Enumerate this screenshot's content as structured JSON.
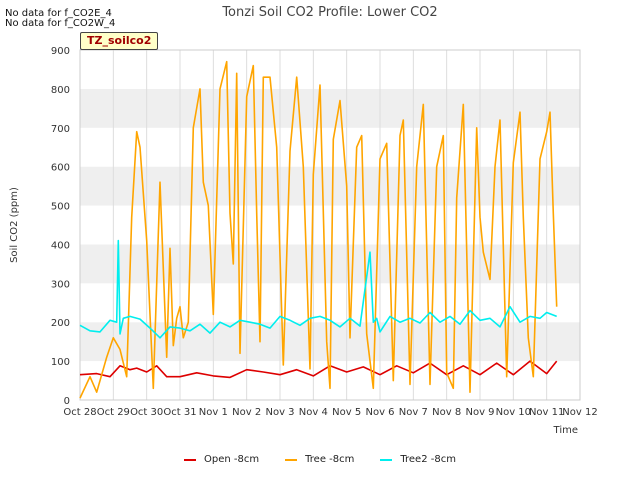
{
  "no_data_messages": [
    "No data for f_CO2E_4",
    "No data for f_CO2W_4"
  ],
  "badge_label": "TZ_soilco2",
  "chart_data": {
    "type": "line",
    "title": "Tonzi Soil CO2 Profile: Lower CO2",
    "xlabel": "Time",
    "ylabel": "Soil CO2 (ppm)",
    "xlim": [
      0,
      15
    ],
    "ylim": [
      0,
      900
    ],
    "yticks": [
      0,
      100,
      200,
      300,
      400,
      500,
      600,
      700,
      800,
      900
    ],
    "xtick_labels": [
      "Oct 28",
      "Oct 29",
      "Oct 30",
      "Oct 31",
      "Nov 1",
      "Nov 2",
      "Nov 3",
      "Nov 4",
      "Nov 5",
      "Nov 6",
      "Nov 7",
      "Nov 8",
      "Nov 9",
      "Nov 10",
      "Nov 11",
      "Nov 12"
    ],
    "legend_position": "bottom-center",
    "series": [
      {
        "name": "Open -8cm",
        "color": "#dd0000",
        "x": [
          0.0,
          0.5,
          0.9,
          1.2,
          1.5,
          1.7,
          2.0,
          2.3,
          2.6,
          3.0,
          3.5,
          4.0,
          4.5,
          5.0,
          5.5,
          6.0,
          6.5,
          7.0,
          7.5,
          8.0,
          8.5,
          9.0,
          9.5,
          10.0,
          10.5,
          11.0,
          11.5,
          12.0,
          12.5,
          13.0,
          13.5,
          14.0,
          14.3
        ],
        "values": [
          65,
          68,
          60,
          88,
          78,
          82,
          72,
          88,
          60,
          60,
          70,
          62,
          58,
          78,
          72,
          65,
          78,
          62,
          88,
          72,
          85,
          65,
          88,
          70,
          95,
          65,
          88,
          65,
          95,
          65,
          100,
          68,
          100
        ]
      },
      {
        "name": "Tree -8cm",
        "color": "#ffa500",
        "x": [
          0.0,
          0.3,
          0.5,
          0.8,
          1.0,
          1.2,
          1.4,
          1.55,
          1.7,
          1.8,
          2.0,
          2.2,
          2.4,
          2.6,
          2.7,
          2.8,
          2.9,
          3.0,
          3.1,
          3.25,
          3.4,
          3.6,
          3.7,
          3.85,
          4.0,
          4.2,
          4.4,
          4.5,
          4.6,
          4.7,
          4.8,
          5.0,
          5.2,
          5.3,
          5.4,
          5.5,
          5.7,
          5.9,
          6.1,
          6.3,
          6.5,
          6.7,
          6.9,
          7.0,
          7.2,
          7.4,
          7.5,
          7.6,
          7.8,
          8.0,
          8.1,
          8.3,
          8.45,
          8.6,
          8.8,
          9.0,
          9.2,
          9.4,
          9.6,
          9.7,
          9.9,
          10.1,
          10.3,
          10.5,
          10.7,
          10.9,
          11.0,
          11.2,
          11.3,
          11.5,
          11.7,
          11.9,
          12.0,
          12.1,
          12.3,
          12.45,
          12.6,
          12.8,
          13.0,
          13.2,
          13.3,
          13.45,
          13.6,
          13.8,
          14.0,
          14.1,
          14.2,
          14.3
        ],
        "values": [
          5,
          60,
          20,
          110,
          160,
          130,
          60,
          470,
          690,
          650,
          410,
          30,
          560,
          110,
          390,
          140,
          210,
          240,
          160,
          200,
          700,
          800,
          560,
          500,
          220,
          800,
          870,
          480,
          350,
          840,
          120,
          780,
          860,
          480,
          150,
          830,
          830,
          650,
          90,
          640,
          830,
          600,
          80,
          580,
          810,
          150,
          30,
          670,
          770,
          550,
          160,
          650,
          680,
          170,
          30,
          620,
          660,
          50,
          680,
          720,
          40,
          600,
          760,
          40,
          600,
          680,
          70,
          30,
          520,
          760,
          20,
          700,
          470,
          380,
          310,
          600,
          720,
          60,
          610,
          740,
          470,
          160,
          60,
          620,
          690,
          740,
          480,
          240
        ]
      },
      {
        "name": "Tree2 -8cm",
        "color": "#00eeee",
        "x": [
          0.0,
          0.3,
          0.6,
          0.9,
          1.1,
          1.15,
          1.2,
          1.3,
          1.5,
          1.8,
          2.1,
          2.4,
          2.7,
          3.0,
          3.3,
          3.6,
          3.9,
          4.2,
          4.5,
          4.8,
          5.1,
          5.4,
          5.7,
          6.0,
          6.3,
          6.6,
          6.9,
          7.2,
          7.5,
          7.8,
          8.1,
          8.4,
          8.7,
          8.8,
          8.9,
          9.0,
          9.3,
          9.6,
          9.9,
          10.2,
          10.5,
          10.8,
          11.1,
          11.4,
          11.7,
          12.0,
          12.3,
          12.6,
          12.9,
          13.2,
          13.5,
          13.8,
          14.0,
          14.3
        ],
        "values": [
          192,
          178,
          175,
          205,
          200,
          410,
          170,
          210,
          215,
          208,
          185,
          160,
          188,
          185,
          178,
          195,
          172,
          200,
          188,
          205,
          200,
          195,
          185,
          215,
          205,
          192,
          210,
          215,
          205,
          188,
          210,
          190,
          380,
          200,
          210,
          175,
          215,
          200,
          210,
          198,
          225,
          200,
          215,
          195,
          230,
          205,
          210,
          188,
          240,
          200,
          215,
          210,
          225,
          215
        ]
      }
    ]
  }
}
